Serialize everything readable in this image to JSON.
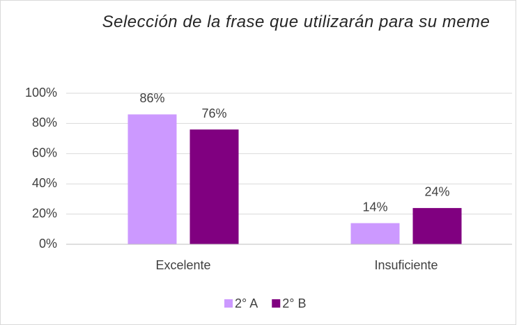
{
  "chart_data": {
    "type": "bar",
    "title": "Selección de la frase que utilizarán para su meme",
    "categories": [
      "Excelente",
      "Insuficiente"
    ],
    "series": [
      {
        "name": "2° A",
        "color": "#cc99ff",
        "values": [
          86,
          14
        ],
        "value_labels": [
          "86%",
          "14%"
        ]
      },
      {
        "name": "2° B",
        "color": "#800080",
        "values": [
          76,
          24
        ],
        "value_labels": [
          "76%",
          "24%"
        ]
      }
    ],
    "ylim": [
      0,
      100
    ],
    "yticks": [
      {
        "value": 0,
        "label": "0%"
      },
      {
        "value": 20,
        "label": "20%"
      },
      {
        "value": 40,
        "label": "40%"
      },
      {
        "value": 60,
        "label": "60%"
      },
      {
        "value": 80,
        "label": "80%"
      },
      {
        "value": 100,
        "label": "100%"
      }
    ],
    "grid": true,
    "legend": "bottom"
  }
}
